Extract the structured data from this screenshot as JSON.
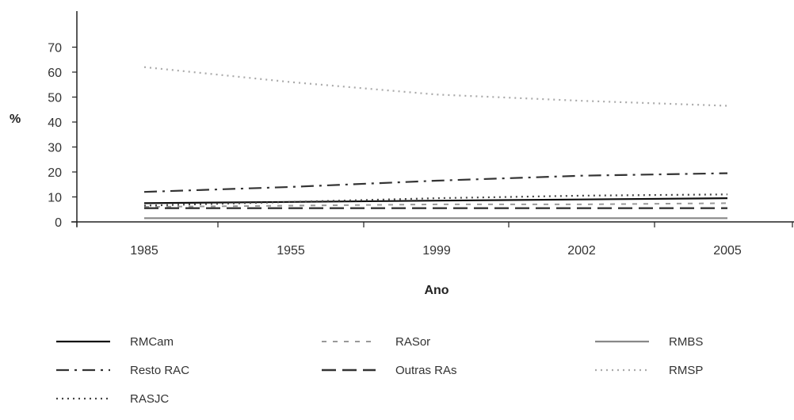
{
  "chart_data": {
    "type": "line",
    "title": "",
    "xlabel": "Ano",
    "ylabel": "%",
    "categories": [
      "1985",
      "1955",
      "1999",
      "2002",
      "2005"
    ],
    "y_ticks": [
      "0",
      "10",
      "20",
      "30",
      "40",
      "50",
      "60",
      "70"
    ],
    "ylim": [
      0,
      80
    ],
    "grid": false,
    "legend_position": "bottom",
    "series": [
      {
        "name": "RMCam",
        "values": [
          7.5,
          8.0,
          8.5,
          9.0,
          9.5
        ],
        "style": "solid",
        "color": "#111111"
      },
      {
        "name": "RASor",
        "values": [
          6.0,
          6.5,
          7.0,
          7.0,
          7.5
        ],
        "style": "dashed",
        "color": "#999999"
      },
      {
        "name": "RMBS",
        "values": [
          1.5,
          1.5,
          1.5,
          1.5,
          1.5
        ],
        "style": "solid",
        "color": "#888888"
      },
      {
        "name": "Resto RAC",
        "values": [
          12.0,
          14.0,
          16.5,
          18.5,
          19.5
        ],
        "style": "dashdot",
        "color": "#333333"
      },
      {
        "name": "Outras RAs",
        "values": [
          5.5,
          5.5,
          5.5,
          5.5,
          5.5
        ],
        "style": "longdash",
        "color": "#333333"
      },
      {
        "name": "RMSP",
        "values": [
          62.0,
          56.0,
          51.0,
          48.5,
          46.5
        ],
        "style": "dotted",
        "color": "#aaaaaa"
      },
      {
        "name": "RASJC",
        "values": [
          6.5,
          8.0,
          9.5,
          10.5,
          11.0
        ],
        "style": "dotted",
        "color": "#444444"
      }
    ]
  }
}
